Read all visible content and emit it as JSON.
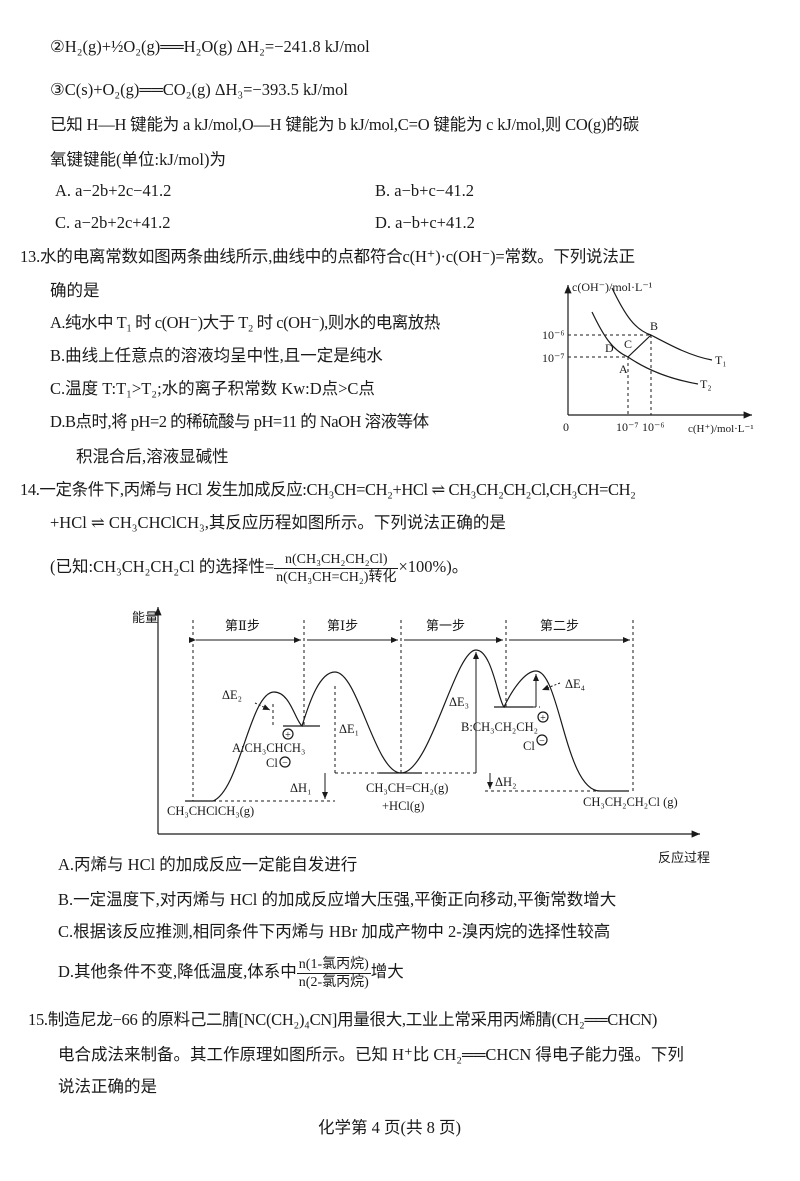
{
  "q12_tail": {
    "eq2": "②H₂(g)+½O₂(g)══H₂O(g)   ΔH₂=−241.8 kJ/mol",
    "eq3": "③C(s)+O₂(g)══CO₂(g)   ΔH₃=−393.5 kJ/mol",
    "stem1": "已知 H—H 键能为 a kJ/mol,O—H 键能为 b kJ/mol,C=O 键能为 c kJ/mol,则 CO(g)的碳",
    "stem2": "氧键键能(单位:kJ/mol)为",
    "options": [
      "A. a−2b+2c−41.2",
      "B. a−b+c−41.2",
      "C. a−2b+2c+41.2",
      "D. a−b+c+41.2"
    ]
  },
  "q13": {
    "stem1": "13.水的电离常数如图两条曲线所示,曲线中的点都符合c(H⁺)·c(OH⁻)=常数。下列说法正",
    "stem2": "确的是",
    "options": [
      "A.纯水中 T₁ 时 c(OH⁻)大于 T₂ 时 c(OH⁻),则水的电离放热",
      "B.曲线上任意点的溶液均呈中性,且一定是纯水",
      "C.温度 T:T₁>T₂;水的离子积常数 Kw:D点>C点",
      "D.B点时,将 pH=2 的稀硫酸与 pH=11 的 NaOH 溶液等体",
      "积混合后,溶液显碱性"
    ],
    "graph": {
      "ylabel": "c(OH⁻)/mol·L⁻¹",
      "xlabel": "c(H⁺)/mol·L⁻¹",
      "origin": "0",
      "yticks": [
        "10⁻⁶",
        "10⁻⁷"
      ],
      "xticks": [
        "10⁻⁷",
        "10⁻⁶"
      ],
      "points": [
        "A",
        "B",
        "C",
        "D"
      ],
      "curves": [
        "T₁",
        "T₂"
      ]
    }
  },
  "q14": {
    "stem1": "14.一定条件下,丙烯与 HCl 发生加成反应:CH₃CH=CH₂+HCl ⇌ CH₃CH₂CH₂Cl,CH₃CH=CH₂",
    "stem2": "+HCl ⇌ CH₃CHClCH₃,其反应历程如图所示。下列说法正确的是",
    "known_prefix": "(已知:CH₃CH₂CH₂Cl 的选择性=",
    "known_num": "n(CH₃CH₂CH₂Cl)",
    "known_den": "n(CH₃CH=CH₂)转化",
    "known_suffix": "×100%)。",
    "diagram": {
      "ylabel": "能量",
      "xlabel": "反应过程",
      "steps": [
        "第Ⅱ步",
        "第Ⅰ步",
        "第一步",
        "第二步"
      ],
      "labels": {
        "dE1": "ΔE₁",
        "dE2": "ΔE₂",
        "dE3": "ΔE₃",
        "dE4": "ΔE₄",
        "dH1": "ΔH₁",
        "dH2": "ΔH₂",
        "A": "A:CH₃CHCH₃",
        "A_cl": "Cl",
        "B": "B:CH₃CH₂CH₂",
        "B_cl": "Cl",
        "reactant1": "CH₃CH=CH₂(g)",
        "reactant2": "+HCl(g)",
        "product_left": "CH₃CHClCH₃(g)",
        "product_right": "CH₃CH₂CH₂Cl (g)",
        "plus": "+",
        "minus": "−"
      }
    },
    "options": [
      "A.丙烯与 HCl 的加成反应一定能自发进行",
      "B.一定温度下,对丙烯与 HCl 的加成反应增大压强,平衡正向移动,平衡常数增大",
      "C.根据该反应推测,相同条件下丙烯与 HBr 加成产物中 2-溴丙烷的选择性较高"
    ],
    "optD_prefix": "D.其他条件不变,降低温度,体系中",
    "optD_num": "n(1-氯丙烷)",
    "optD_den": "n(2-氯丙烷)",
    "optD_suffix": "增大"
  },
  "q15": {
    "stem1": "15.制造尼龙−66 的原料己二腈[NC(CH₂)₄CN]用量很大,工业上常采用丙烯腈(CH₂══CHCN)",
    "stem2": "电合成法来制备。其工作原理如图所示。已知 H⁺比 CH₂══CHCN 得电子能力强。下列",
    "stem3": "说法正确的是"
  },
  "footer": "化学第 4 页(共 8 页)"
}
